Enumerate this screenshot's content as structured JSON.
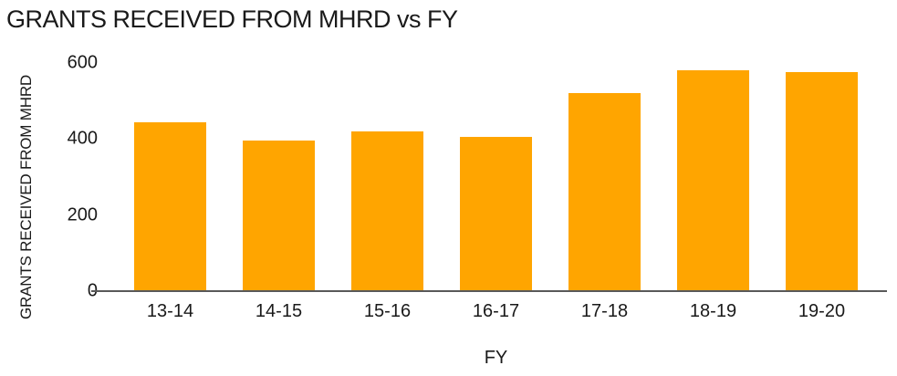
{
  "title": "GRANTS RECEIVED FROM MHRD vs FY",
  "chart_data": {
    "type": "bar",
    "title": "GRANTS RECEIVED FROM MHRD vs FY",
    "categories": [
      "13-14",
      "14-15",
      "15-16",
      "16-17",
      "17-18",
      "18-19",
      "19-20"
    ],
    "values": [
      445,
      395,
      420,
      405,
      520,
      580,
      575
    ],
    "xlabel": "FY",
    "ylabel": "GRANTS RECEIVED FROM MHRD",
    "ylim": [
      0,
      600
    ],
    "yticks": [
      0,
      200,
      400,
      600
    ],
    "grid": false,
    "legend": false,
    "colors": {
      "bar": "#FFA500",
      "axis_line": "#595959",
      "text": "#1a1a1a",
      "background": "#ffffff"
    }
  }
}
